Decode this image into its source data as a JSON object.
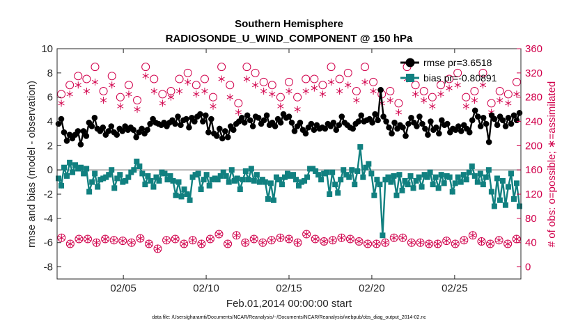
{
  "chart_data": {
    "type": "line",
    "title": "Southern Hemisphere",
    "subtitle": "RADIOSONDE_U_WIND_COMPONENT @ 150 hPa",
    "xlabel": "Feb.01,2014 00:00:00 start",
    "ylabel": "rmse and bias (model - observation)",
    "ylabel_right": "# of obs: o=possible; ∗=assimilated",
    "xlim": [
      1,
      29
    ],
    "ylim": [
      -9,
      10
    ],
    "ylim_right": [
      -20,
      360
    ],
    "xticks": [
      5,
      10,
      15,
      20,
      25
    ],
    "xtick_labels": [
      "02/05",
      "02/10",
      "02/15",
      "02/20",
      "02/25"
    ],
    "yticks": [
      -8,
      -6,
      -4,
      -2,
      0,
      2,
      4,
      6,
      8,
      10
    ],
    "yticks_right": [
      0,
      40,
      80,
      120,
      160,
      200,
      240,
      280,
      320,
      360
    ],
    "footnote": "data file: /Users/gharamti/Documents/NCAR/Reanalysis/~/Documents/NCAR/Reanalysis/webpub/obs_diag_output_2014-02.nc",
    "legend_position": "top-right",
    "colors": {
      "rmse": "#000000",
      "bias": "#118080",
      "obs": "#d1004b",
      "zero_line": "#b4b4b4"
    },
    "series": [
      {
        "name": "rmse pr=3.6518",
        "values": [
          3.8,
          4.2,
          3.1,
          2.4,
          2.9,
          2.6,
          2.9,
          3.2,
          2.1,
          3.2,
          2.8,
          3.9,
          3.6,
          4.3,
          3.4,
          3.2,
          3.5,
          2.9,
          3.2,
          3.6,
          3.1,
          2.9,
          3.4,
          3.2,
          3.6,
          3.3,
          3.5,
          3.3,
          2.7,
          3.1,
          3.4,
          3.0,
          3.3,
          3.8,
          4.2,
          3.9,
          3.8,
          3.7,
          3.9,
          3.6,
          3.9,
          4.1,
          3.8,
          4.4,
          3.7,
          4.1,
          4.2,
          3.5,
          4.3,
          4.0,
          4.4,
          4.6,
          4.0,
          4.5,
          3.1,
          4.2,
          3.0,
          2.8,
          3.4,
          2.6,
          3.2,
          2.7,
          3.6,
          3.3,
          3.8,
          4.0,
          4.3,
          3.9,
          4.5,
          4.1,
          3.6,
          4.4,
          4.3,
          3.8,
          4.1,
          4.5,
          3.7,
          3.9,
          3.6,
          4.2,
          3.9,
          4.6,
          4.3,
          4.4,
          3.9,
          3.2,
          3.6,
          3.9,
          3.3,
          3.0,
          3.5,
          3.8,
          3.3,
          3.7,
          3.4,
          3.5,
          3.4,
          3.8,
          3.6,
          3.9,
          3.3,
          3.7,
          4.4,
          3.9,
          3.7,
          3.5,
          3.4,
          3.8,
          4.0,
          4.5,
          4.0,
          4.1,
          4.2,
          3.9,
          4.6,
          4.1,
          6.6,
          4.4,
          4.0,
          3.5,
          3.0,
          3.9,
          3.4,
          3.7,
          3.5,
          2.8,
          3.8,
          4.3,
          3.9,
          3.6,
          4.4,
          3.8,
          3.4,
          2.9,
          4.0,
          3.3,
          3.5,
          3.0,
          4.1,
          3.7,
          3.8,
          3.1,
          3.4,
          3.3,
          3.6,
          3.2,
          3.7,
          3.4,
          3.1,
          4.1,
          4.9,
          4.4,
          3.6,
          4.3,
          3.8,
          2.3,
          4.5,
          4.2,
          3.7,
          4.4,
          4.1,
          3.6,
          4.3,
          3.8,
          4.5,
          4.1,
          4.7
        ]
      },
      {
        "name": "bias pr=-0.80891",
        "values": [
          -0.7,
          -1.3,
          0.2,
          -0.5,
          0.6,
          -0.2,
          0.4,
          0.1,
          0.2,
          -0.3,
          0.1,
          -1.8,
          -1.0,
          -0.3,
          -1.4,
          -0.8,
          -0.7,
          -0.6,
          -0.4,
          0.0,
          -1.5,
          -0.7,
          -0.4,
          -1.0,
          -0.9,
          -0.6,
          -0.2,
          0.0,
          0.7,
          0.3,
          -0.3,
          -1.2,
          -0.5,
          -0.9,
          -1.4,
          -0.6,
          -0.9,
          -0.2,
          -0.3,
          -0.8,
          -0.5,
          -0.9,
          -2.1,
          -1.0,
          -2.2,
          -1.6,
          -2.0,
          -2.5,
          -0.6,
          -0.4,
          -0.3,
          -1.6,
          -0.8,
          -0.4,
          -1.3,
          -0.8,
          -0.7,
          -0.8,
          -0.5,
          -0.2,
          -0.5,
          -1.0,
          0.0,
          -0.9,
          -0.7,
          -1.6,
          -0.8,
          -0.1,
          -0.8,
          0.1,
          -0.9,
          -0.4,
          -1.0,
          -0.8,
          -1.0,
          -2.4,
          -1.1,
          -2.5,
          -0.6,
          -0.8,
          -1.2,
          -0.6,
          -0.3,
          -0.5,
          -0.4,
          -0.8,
          -1.3,
          -1.0,
          -0.9,
          -0.6,
          0.1,
          0.1,
          -0.1,
          -0.4,
          -0.8,
          -0.3,
          -0.2,
          -2.0,
          -0.2,
          -1.2,
          -1.9,
          -0.8,
          0.0,
          -0.4,
          -0.6,
          0.0,
          -1.2,
          -0.1,
          1.9,
          -0.6,
          0.2,
          0.5,
          -0.3,
          -2.1,
          -0.8,
          -1.2,
          -5.4,
          -0.8,
          -0.6,
          -1.0,
          -0.5,
          -2.1,
          -0.4,
          -1.7,
          -0.9,
          -1.2,
          -0.5,
          -1.5,
          -0.9,
          -0.6,
          -1.4,
          -0.4,
          -0.6,
          -0.2,
          -1.2,
          -0.6,
          -1.5,
          -0.4,
          -1.1,
          -0.5,
          -0.6,
          -1.8,
          -1.1,
          -0.6,
          -1.0,
          -0.4,
          -0.8,
          -0.2,
          0.3,
          -0.5,
          -1.0,
          -0.3,
          -1.2,
          -0.6,
          0.0,
          -1.8,
          -3.0,
          -0.7,
          -2.5,
          -0.9,
          -2.9,
          -1.4,
          -0.3,
          -2.4,
          -1.1,
          -3.0
        ]
      }
    ],
    "obs_possible_low": [
      48,
      38,
      46,
      46,
      40,
      46,
      44,
      43,
      40,
      47,
      38,
      30,
      44,
      46,
      38,
      44,
      38,
      46,
      54,
      38,
      52,
      40,
      46,
      40,
      44,
      48,
      46,
      40,
      54,
      46,
      42,
      44,
      48,
      46,
      42,
      38,
      38,
      40,
      48,
      48,
      40,
      40,
      38,
      38,
      43,
      38,
      44,
      52,
      42,
      38,
      44,
      38,
      46
    ],
    "obs_assim_low": [
      48,
      38,
      46,
      46,
      40,
      46,
      44,
      43,
      40,
      47,
      38,
      30,
      44,
      46,
      38,
      44,
      38,
      46,
      54,
      38,
      52,
      40,
      46,
      40,
      44,
      48,
      46,
      40,
      54,
      46,
      42,
      44,
      48,
      46,
      42,
      38,
      38,
      40,
      48,
      48,
      40,
      40,
      38,
      38,
      43,
      38,
      44,
      52,
      42,
      38,
      44,
      38,
      46
    ],
    "obs_possible_high": [
      285,
      300,
      315,
      310,
      330,
      290,
      315,
      280,
      300,
      275,
      330,
      310,
      285,
      290,
      310,
      320,
      300,
      310,
      280,
      330,
      300,
      270,
      330,
      320,
      305,
      300,
      280,
      305,
      280,
      310,
      310,
      300,
      330,
      310,
      320,
      290,
      330,
      305,
      285,
      290,
      270,
      330,
      300,
      290,
      280,
      300,
      310,
      320,
      280,
      290,
      320,
      270,
      290,
      285,
      305
    ],
    "obs_assim_high": [
      270,
      285,
      300,
      290,
      305,
      275,
      300,
      265,
      285,
      260,
      315,
      290,
      270,
      280,
      290,
      305,
      285,
      290,
      265,
      310,
      280,
      255,
      310,
      300,
      290,
      285,
      265,
      290,
      260,
      290,
      295,
      285,
      305,
      290,
      300,
      275,
      305,
      290,
      270,
      275,
      255,
      310,
      285,
      275,
      265,
      285,
      295,
      300,
      265,
      275,
      300,
      255,
      275,
      270,
      285
    ]
  }
}
